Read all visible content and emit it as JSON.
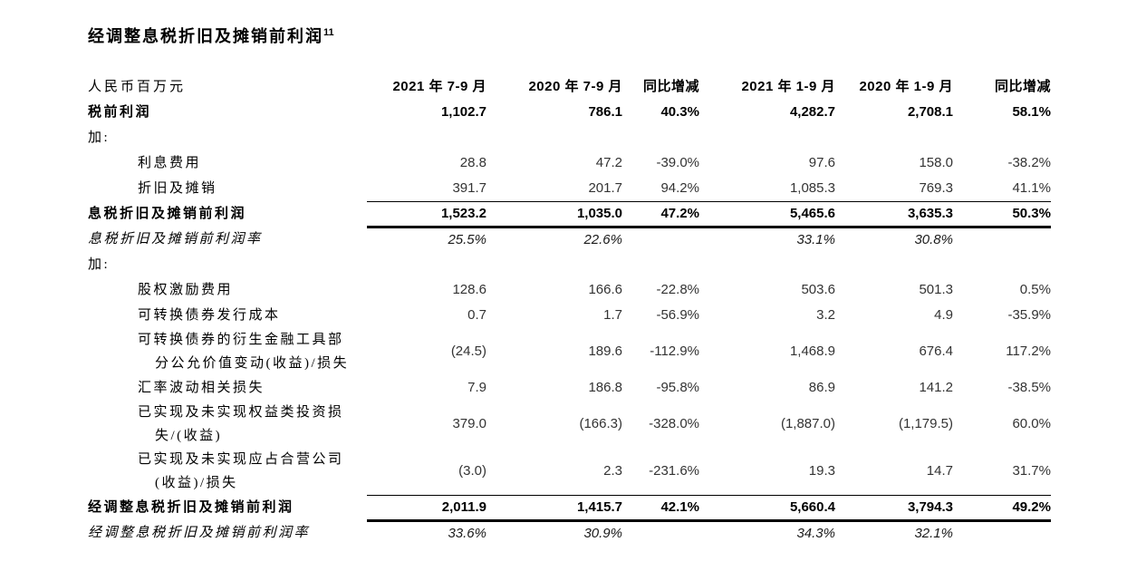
{
  "title": {
    "text": "经调整息税折旧及摊销前利润",
    "superscript": "11"
  },
  "table": {
    "header": [
      "人民币百万元",
      "2021 年 7-9 月",
      "2020 年 7-9 月",
      "同比增减",
      "2021 年 1-9 月",
      "2020 年 1-9 月",
      "同比增减"
    ],
    "rows": [
      {
        "label_lines": [
          "税前利润"
        ],
        "style": "bold",
        "indent": 0,
        "ruled": false,
        "values": [
          "1,102.7",
          "786.1",
          "40.3%",
          "4,282.7",
          "2,708.1",
          "58.1%"
        ]
      },
      {
        "label_lines": [
          "加:"
        ],
        "style": "normal",
        "indent": 0,
        "ruled": false,
        "values": [
          "",
          "",
          "",
          "",
          "",
          ""
        ]
      },
      {
        "label_lines": [
          "利息费用"
        ],
        "style": "normal",
        "indent": 1,
        "ruled": false,
        "values": [
          "28.8",
          "47.2",
          "-39.0%",
          "97.6",
          "158.0",
          "-38.2%"
        ]
      },
      {
        "label_lines": [
          "折旧及摊销"
        ],
        "style": "normal",
        "indent": 1,
        "ruled": false,
        "values": [
          "391.7",
          "201.7",
          "94.2%",
          "1,085.3",
          "769.3",
          "41.1%"
        ]
      },
      {
        "label_lines": [
          "息税折旧及摊销前利润"
        ],
        "style": "bold",
        "indent": 0,
        "ruled": true,
        "values": [
          "1,523.2",
          "1,035.0",
          "47.2%",
          "5,465.6",
          "3,635.3",
          "50.3%"
        ]
      },
      {
        "label_lines": [
          "息税折旧及摊销前利润率"
        ],
        "style": "italic",
        "indent": 0,
        "ruled": false,
        "values": [
          "25.5%",
          "22.6%",
          "",
          "33.1%",
          "30.8%",
          ""
        ]
      },
      {
        "label_lines": [
          "加:"
        ],
        "style": "normal",
        "indent": 0,
        "ruled": false,
        "values": [
          "",
          "",
          "",
          "",
          "",
          ""
        ]
      },
      {
        "label_lines": [
          "股权激励费用"
        ],
        "style": "normal",
        "indent": 1,
        "ruled": false,
        "values": [
          "128.6",
          "166.6",
          "-22.8%",
          "503.6",
          "501.3",
          "0.5%"
        ]
      },
      {
        "label_lines": [
          "可转换债券发行成本"
        ],
        "style": "normal",
        "indent": 1,
        "ruled": false,
        "values": [
          "0.7",
          "1.7",
          "-56.9%",
          "3.2",
          "4.9",
          "-35.9%"
        ]
      },
      {
        "label_lines": [
          "可转换债券的衍生金融工具部",
          "分公允价值变动(收益)/损失"
        ],
        "style": "normal",
        "indent": 1,
        "ruled": false,
        "values": [
          "(24.5)",
          "189.6",
          "-112.9%",
          "1,468.9",
          "676.4",
          "117.2%"
        ]
      },
      {
        "label_lines": [
          "汇率波动相关损失"
        ],
        "style": "normal",
        "indent": 1,
        "ruled": false,
        "values": [
          "7.9",
          "186.8",
          "-95.8%",
          "86.9",
          "141.2",
          "-38.5%"
        ]
      },
      {
        "label_lines": [
          "已实现及未实现权益类投资损",
          "失/(收益)"
        ],
        "style": "normal",
        "indent": 1,
        "ruled": false,
        "values": [
          "379.0",
          "(166.3)",
          "-328.0%",
          "(1,887.0)",
          "(1,179.5)",
          "60.0%"
        ]
      },
      {
        "label_lines": [
          "已实现及未实现应占合营公司",
          "(收益)/损失"
        ],
        "style": "normal",
        "indent": 1,
        "ruled": false,
        "values": [
          "(3.0)",
          "2.3",
          "-231.6%",
          "19.3",
          "14.7",
          "31.7%"
        ]
      },
      {
        "label_lines": [
          "经调整息税折旧及摊销前利润"
        ],
        "style": "bold",
        "indent": 0,
        "ruled": true,
        "values": [
          "2,011.9",
          "1,415.7",
          "42.1%",
          "5,660.4",
          "3,794.3",
          "49.2%"
        ]
      },
      {
        "label_lines": [
          "经调整息税折旧及摊销前利润率"
        ],
        "style": "italic",
        "indent": 0,
        "ruled": false,
        "values": [
          "33.6%",
          "30.9%",
          "",
          "34.3%",
          "32.1%",
          ""
        ]
      }
    ]
  }
}
